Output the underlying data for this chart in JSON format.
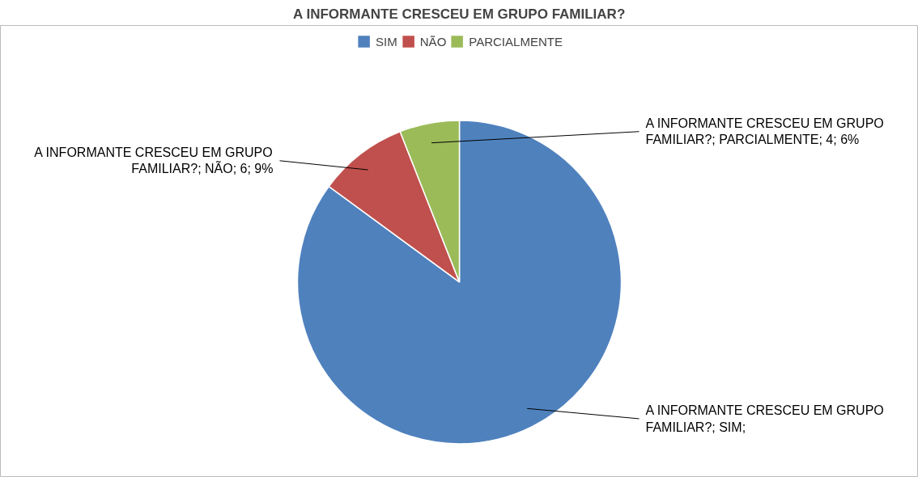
{
  "chart_data": {
    "type": "pie",
    "title": "A INFORMANTE CRESCEU EM GRUPO FAMILIAR?",
    "categories": [
      "SIM",
      "NÃO",
      "PARCIALMENTE"
    ],
    "values": [
      57,
      6,
      4
    ],
    "colors": [
      "#4f81bd",
      "#c0504d",
      "#9bbb59"
    ],
    "value_labels": [
      "A INFORMANTE CRESCEU EM GRUPO FAMILIAR?; SIM;",
      "A INFORMANTE CRESCEU EM GRUPO FAMILIAR?; NÃO; 6; 9%",
      "A INFORMANTE CRESCEU EM GRUPO FAMILIAR?; PARCIALMENTE; 4; 6%"
    ],
    "legend": "top"
  }
}
